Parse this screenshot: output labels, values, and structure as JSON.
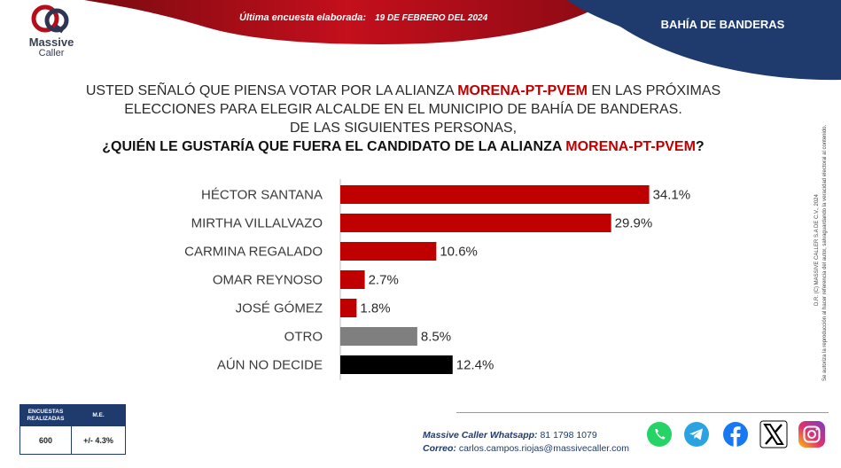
{
  "header": {
    "brand_line1": "Massive",
    "brand_line2": "Caller",
    "survey_date_label": "Última encuesta elaborada:",
    "survey_date": "19 DE FEBRERO DEL 2024",
    "location": "BAHÍA DE BANDERAS"
  },
  "question": {
    "line1_pre": "USTED SEÑALÓ QUE PIENSA VOTAR POR LA ALIANZA ",
    "line1_hl": "MORENA-PT-PVEM",
    "line1_post": " EN LAS PRÓXIMAS",
    "line2": "ELECCIONES PARA ELEGIR ALCALDE EN EL MUNICIPIO DE BAHÍA DE BANDERAS.",
    "line3": "DE LAS SIGUIENTES PERSONAS,",
    "line4_pre": "¿QUIÉN LE GUSTARÍA QUE FUERA EL CANDIDATO DE LA ALIANZA ",
    "line4_hl": "MORENA-PT-PVEM",
    "line4_post": "?"
  },
  "chart_data": {
    "type": "bar",
    "orientation": "horizontal",
    "categories": [
      "HÉCTOR SANTANA",
      "MIRTHA VILLALVAZO",
      "CARMINA REGALADO",
      "OMAR REYNOSO",
      "JOSÉ GÓMEZ",
      "OTRO",
      "AÚN NO DECIDE"
    ],
    "values": [
      34.1,
      29.9,
      10.6,
      2.7,
      1.8,
      8.5,
      12.4
    ],
    "labels": [
      "34.1%",
      "29.9%",
      "10.6%",
      "2.7%",
      "1.8%",
      "8.5%",
      "12.4%"
    ],
    "colors": [
      "#c00000",
      "#c00000",
      "#c00000",
      "#c00000",
      "#c00000",
      "#7f7f7f",
      "#000000"
    ],
    "xlim": [
      0,
      36
    ],
    "grid": false,
    "legend": "none"
  },
  "survey_box": {
    "col1_header": "ENCUESTAS REALIZADAS",
    "col2_header": "M.E.",
    "col1_value": "600",
    "col2_value": "+/- 4.3%"
  },
  "contact": {
    "whatsapp_label": "Massive Caller Whatsapp:",
    "whatsapp_value": "81 1798 1079",
    "email_label": "Correo:",
    "email_value": "carlos.campos.riojas@massivecaller.com"
  },
  "copyright": {
    "line1": "D.R. (C) MASSIVE CALLER S.A DE C.V., 2024",
    "line2": "Se autoriza la reproducción al hacer referencia del autor, salvaguardando la veracidad electoral al contenido."
  },
  "social": [
    {
      "icon": "whatsapp-icon",
      "color": "#25d366"
    },
    {
      "icon": "telegram-icon",
      "color": "#2aa3e0"
    },
    {
      "icon": "facebook-icon",
      "color": "#1877f2"
    },
    {
      "icon": "x-icon",
      "color": "#000000"
    },
    {
      "icon": "instagram-icon",
      "color": "#d6249f"
    }
  ],
  "colors": {
    "brand_red": "#c00000",
    "navy": "#1f3a6d",
    "other_gray": "#7f7f7f"
  }
}
